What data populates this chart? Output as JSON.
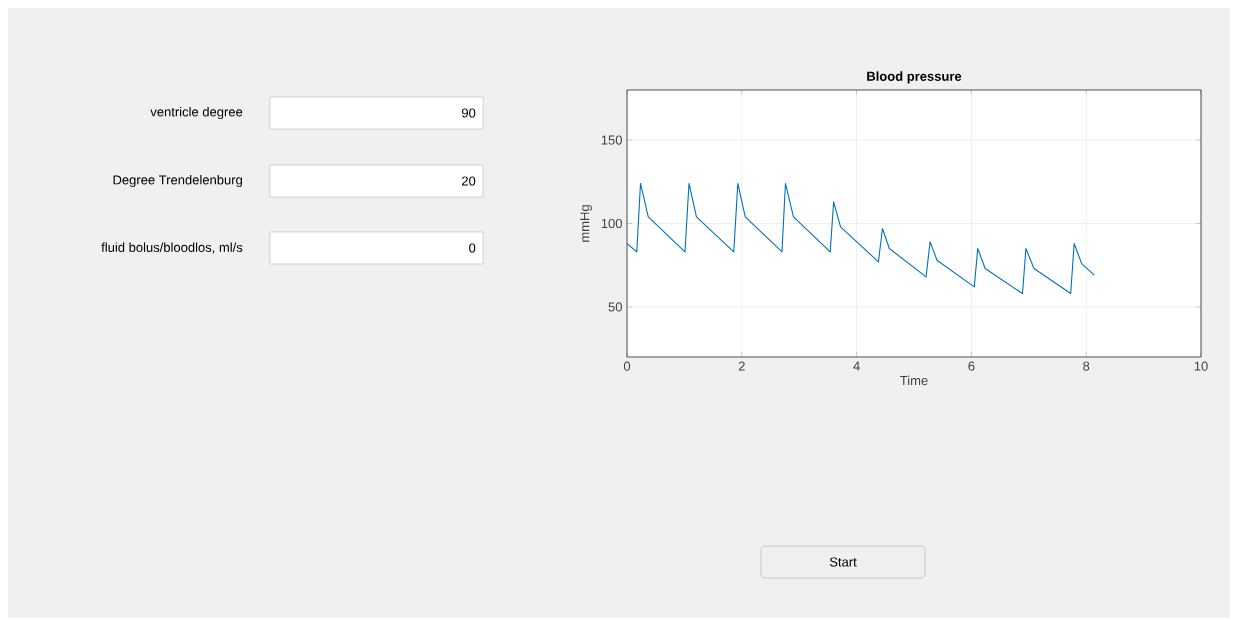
{
  "chart_data": [
    {
      "type": "other",
      "annotations": [
        "ventricle degree",
        "90",
        "Degree Trendelenburg",
        "20",
        "fluid bolus/bloodlos, ml/s",
        "0",
        "Start"
      ]
    },
    {
      "type": "line",
      "title": "Blood pressure",
      "xlabel": "Time",
      "ylabel": "mmHg",
      "xlim": [
        0,
        10
      ],
      "ylim": [
        20,
        180
      ],
      "xticks": [
        0,
        2,
        4,
        6,
        8,
        10
      ],
      "yticks": [
        50,
        100,
        150
      ],
      "grid": true,
      "marker": "none",
      "line_style": "solid",
      "series": [
        {
          "color": "#0072bd",
          "x": [
            0,
            0.17,
            0.235,
            0.37,
            1.01,
            1.08,
            1.21,
            1.86,
            1.93,
            2.06,
            2.7,
            2.76,
            2.9,
            3.54,
            3.6,
            3.72,
            4.38,
            4.45,
            4.57,
            5.21,
            5.28,
            5.4,
            6.05,
            6.11,
            6.24,
            6.89,
            6.95,
            7.09,
            7.73,
            7.79,
            7.92,
            8.14
          ],
          "values": [
            88,
            83,
            124,
            104,
            83,
            124,
            104,
            83,
            124,
            104,
            83,
            124,
            104,
            83,
            113,
            98,
            77,
            97,
            85,
            68,
            89,
            78,
            62,
            85,
            73,
            58,
            85,
            73,
            58,
            88,
            76,
            69
          ]
        }
      ]
    }
  ]
}
